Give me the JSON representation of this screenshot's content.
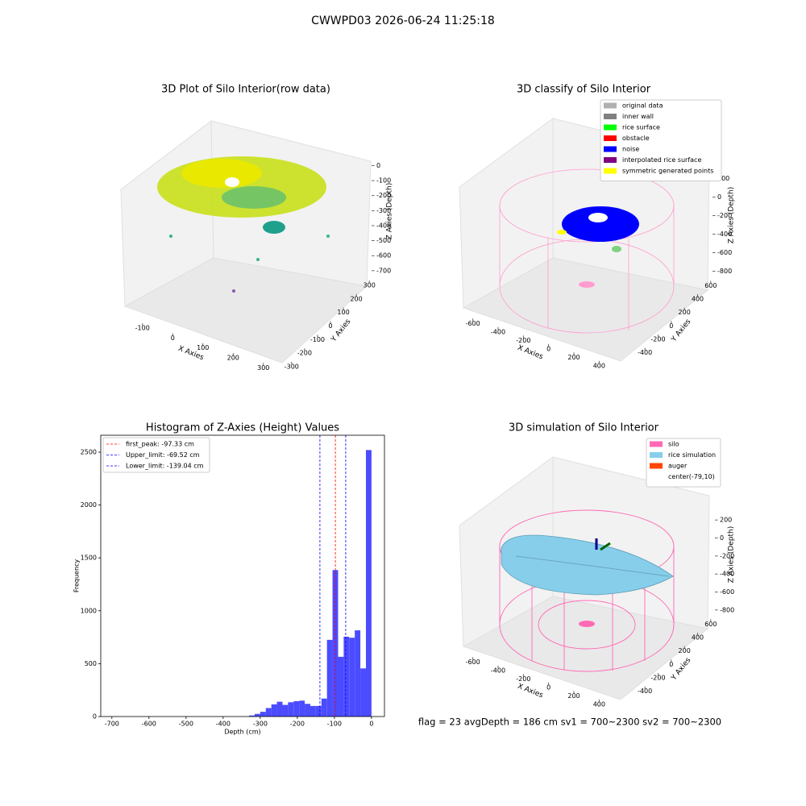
{
  "title": "CWWPD03 2026-06-24 11:25:18",
  "footer": "flag = 23  avgDepth = 186 cm  sv1 = 700~2300  sv2 = 700~2300",
  "chart_data": [
    {
      "type": "scatter3d",
      "title": "3D Plot of Silo Interior(row data)",
      "xlabel": "X Axies",
      "ylabel": "Y Axies",
      "zlabel": "Z Axies (Depth)",
      "xlim": [
        -150,
        330
      ],
      "ylim": [
        -330,
        330
      ],
      "zlim": [
        -760,
        40
      ],
      "xticks": [
        -100,
        0,
        100,
        200,
        300
      ],
      "yticks": [
        -300,
        -200,
        -100,
        0,
        100,
        200,
        300
      ],
      "zticks": [
        0,
        -100,
        -200,
        -300,
        -400,
        -500,
        -600,
        -700
      ]
    },
    {
      "type": "scatter3d",
      "title": "3D classify of Silo Interior",
      "xlabel": "X Axies",
      "ylabel": "Y Axies",
      "zlabel": "Z Axies (Depth)",
      "xlim": [
        -700,
        500
      ],
      "ylim": [
        -500,
        700
      ],
      "zlim": [
        -900,
        300
      ],
      "xticks": [
        -600,
        -400,
        -200,
        0,
        200,
        400
      ],
      "yticks": [
        -400,
        -200,
        0,
        200,
        400,
        600
      ],
      "zticks": [
        200,
        0,
        -200,
        -400,
        -600,
        -800
      ],
      "legend": [
        {
          "name": "original data",
          "color": "#b0b0b0"
        },
        {
          "name": "inner wall",
          "color": "#808080"
        },
        {
          "name": "rice surface",
          "color": "#00ff00"
        },
        {
          "name": "obstacle",
          "color": "#ff0000"
        },
        {
          "name": "noise",
          "color": "#0000ff"
        },
        {
          "name": "interpolated rice surface",
          "color": "#800080"
        },
        {
          "name": "symmetric generated points",
          "color": "#ffff00"
        }
      ]
    },
    {
      "type": "histogram",
      "title": "Histogram of Z-Axies (Height) Values",
      "xlabel": "Depth (cm)",
      "ylabel": "Frequency",
      "color": "#4b4bff",
      "bins": [
        -330,
        -315,
        -300,
        -285,
        -270,
        -255,
        -240,
        -225,
        -210,
        -195,
        -180,
        -165,
        -150,
        -135,
        -120,
        -105,
        -90,
        -75,
        -60,
        -45,
        -30,
        -15,
        0
      ],
      "values": [
        10,
        25,
        45,
        80,
        115,
        140,
        110,
        135,
        145,
        150,
        120,
        100,
        100,
        170,
        725,
        1385,
        565,
        755,
        745,
        815,
        455,
        2520
      ],
      "xlim": [
        -730,
        35
      ],
      "ylim": [
        0,
        2660
      ],
      "xticks": [
        -700,
        -600,
        -500,
        -400,
        -300,
        -200,
        -100,
        0
      ],
      "yticks": [
        0,
        500,
        1000,
        1500,
        2000,
        2500
      ],
      "vlines": [
        {
          "name": "first_peak: -97.33 cm",
          "value": -97.33,
          "color": "#ff0000"
        },
        {
          "name": "Upper_limit: -69.52 cm",
          "value": -69.52,
          "color": "#0000ff"
        },
        {
          "name": "Lower_limit: -139.04 cm",
          "value": -139.04,
          "color": "#0000ff"
        }
      ]
    },
    {
      "type": "surface3d",
      "title": "3D simulation of Silo Interior",
      "xlabel": "X Axies",
      "ylabel": "Y Axies",
      "zlabel": "Z Axies (Depth)",
      "xlim": [
        -700,
        500
      ],
      "ylim": [
        -500,
        700
      ],
      "zlim": [
        -900,
        300
      ],
      "xticks": [
        -600,
        -400,
        -200,
        0,
        200,
        400
      ],
      "yticks": [
        -400,
        -200,
        0,
        200,
        400,
        600
      ],
      "zticks": [
        200,
        0,
        -200,
        -400,
        -600,
        -800
      ],
      "legend": [
        {
          "name": "silo",
          "color": "#ff69b4"
        },
        {
          "name": "rice simulation",
          "color": "#87ceeb"
        },
        {
          "name": "auger",
          "color": "#ff4500"
        },
        {
          "name": "center(-79,10)",
          "color": "#ffffff"
        }
      ]
    }
  ]
}
